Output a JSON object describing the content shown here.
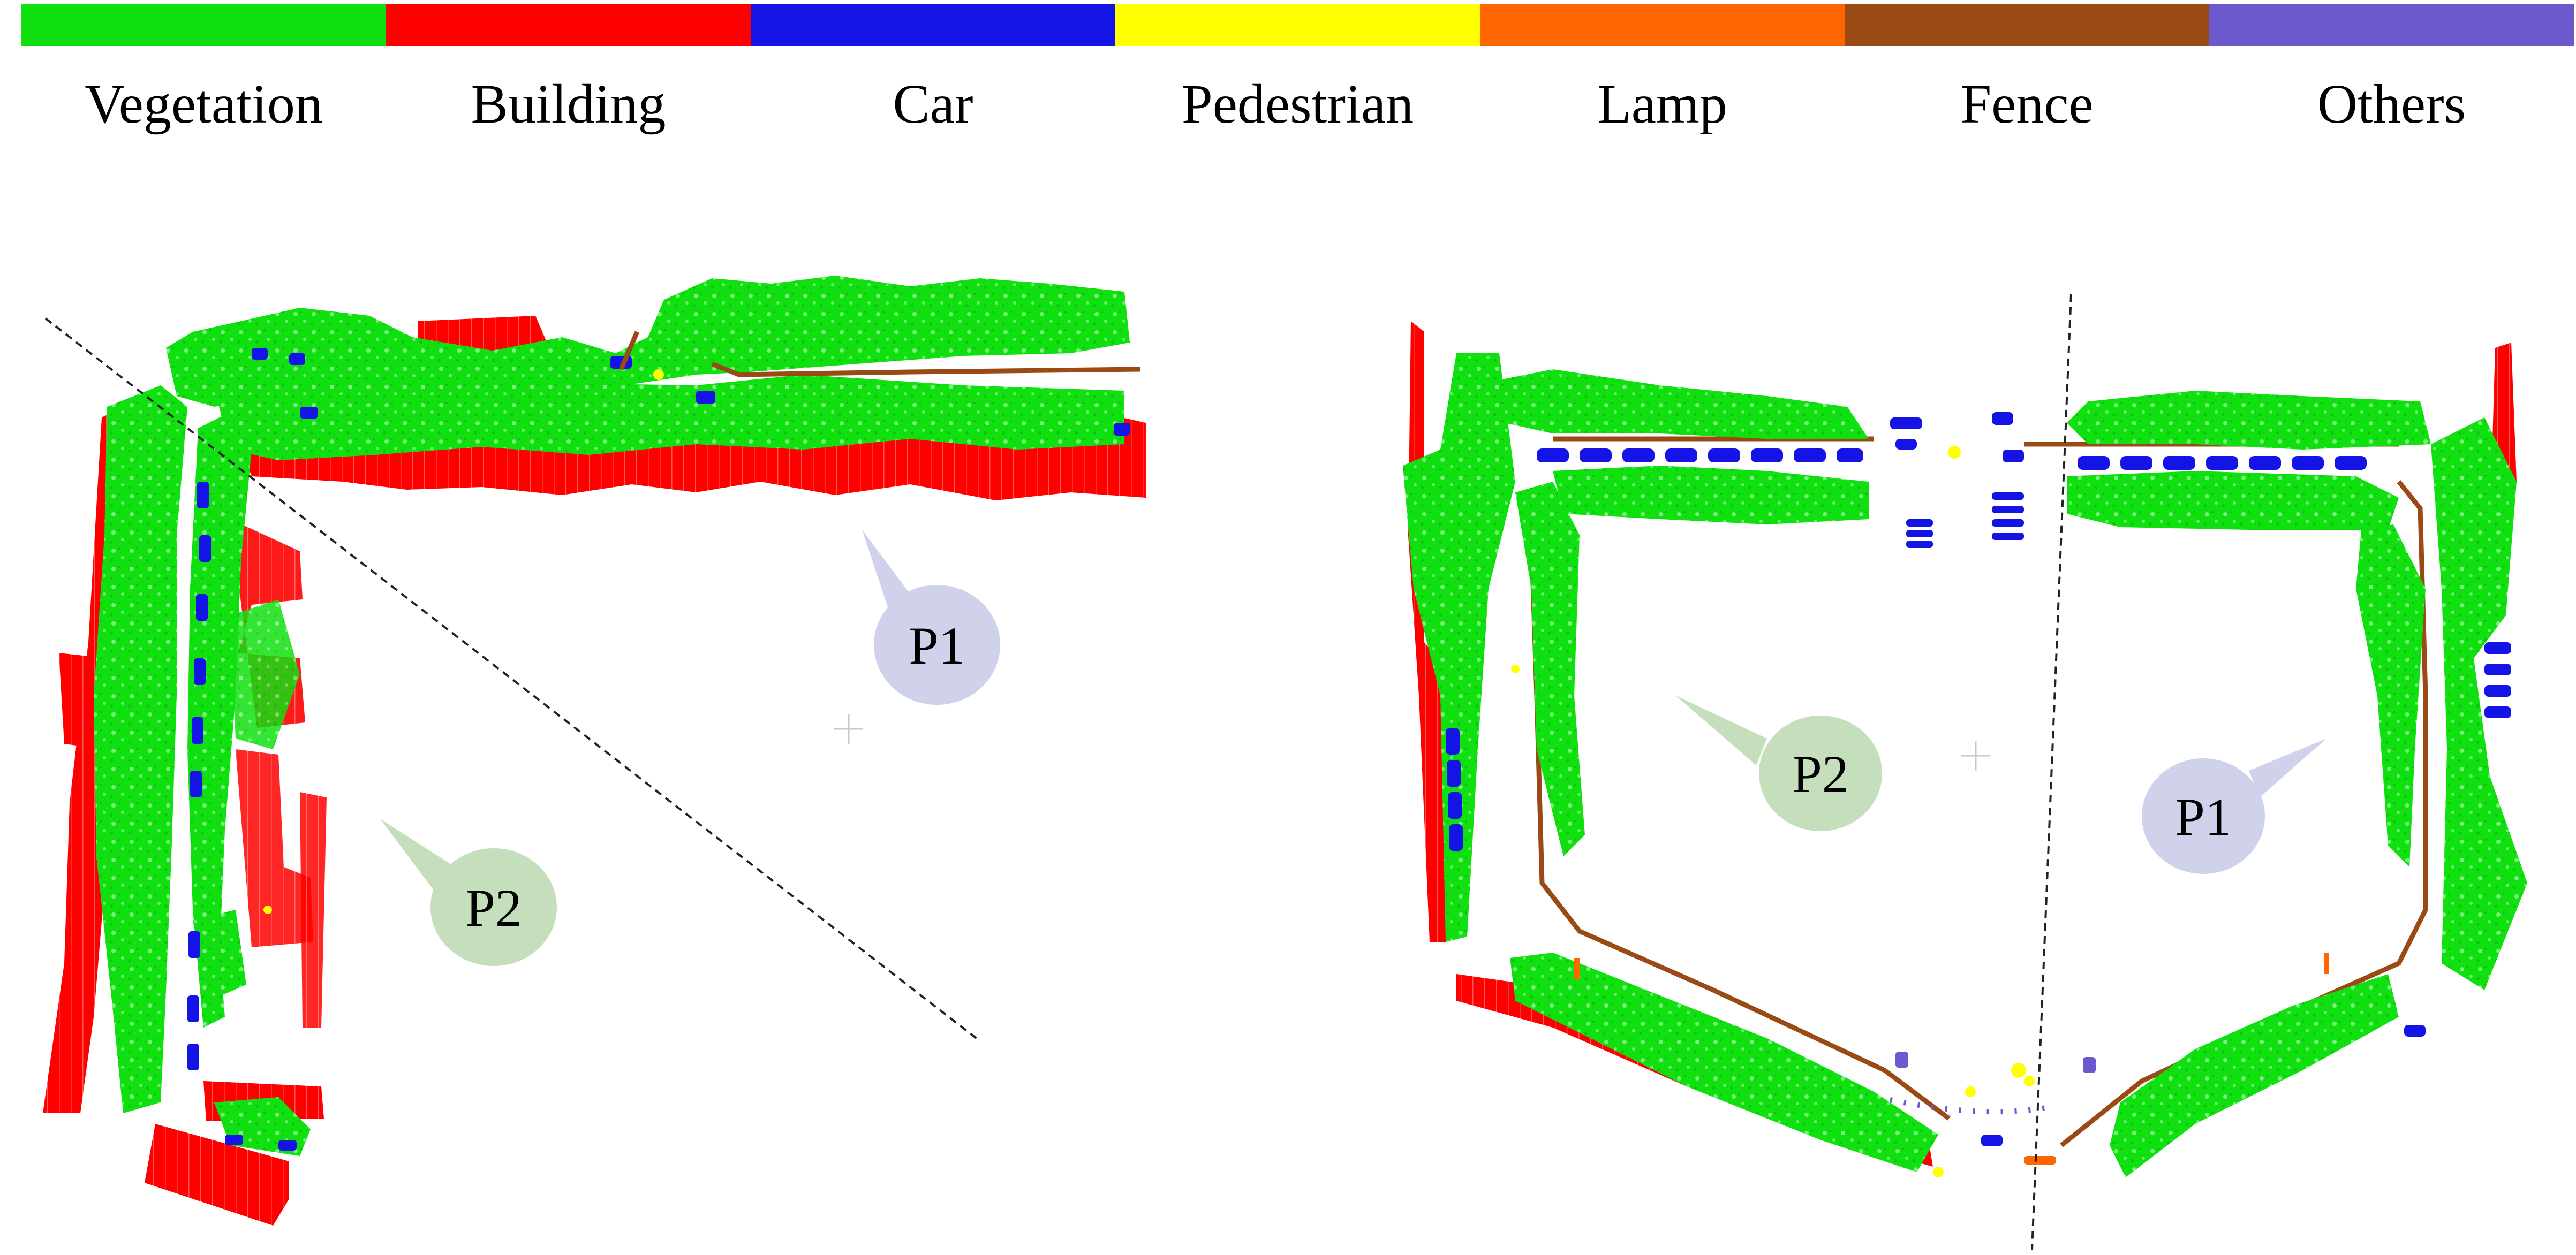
{
  "legend": [
    {
      "label": "Vegetation",
      "color": "#10e010"
    },
    {
      "label": "Building",
      "color": "#ff0000"
    },
    {
      "label": "Car",
      "color": "#1414e6"
    },
    {
      "label": "Pedestrian",
      "color": "#ffff00"
    },
    {
      "label": "Lamp",
      "color": "#ff6600"
    },
    {
      "label": "Fence",
      "color": "#9a4a14"
    },
    {
      "label": "Others",
      "color": "#6a5acd"
    }
  ],
  "left_panel": {
    "callouts": [
      {
        "label": "P1",
        "color": "#cfd2ea"
      },
      {
        "label": "P2",
        "color": "#c5dfbd"
      }
    ]
  },
  "right_panel": {
    "callouts": [
      {
        "label": "P2",
        "color": "#c5dfbd"
      },
      {
        "label": "P1",
        "color": "#cfd2ea"
      }
    ]
  }
}
